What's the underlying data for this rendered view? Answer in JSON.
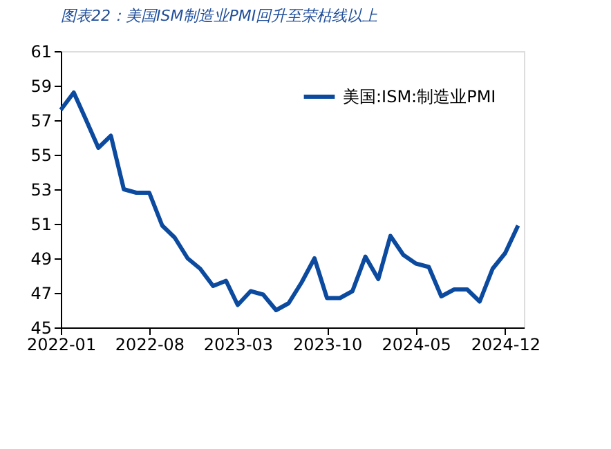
{
  "chart_data": {
    "type": "line",
    "title": "图表22：美国ISM制造业PMI回升至荣枯线以上",
    "x": [
      "2022-01",
      "2022-02",
      "2022-03",
      "2022-04",
      "2022-05",
      "2022-06",
      "2022-07",
      "2022-08",
      "2022-09",
      "2022-10",
      "2022-11",
      "2022-12",
      "2023-01",
      "2023-02",
      "2023-03",
      "2023-04",
      "2023-05",
      "2023-06",
      "2023-07",
      "2023-08",
      "2023-09",
      "2023-10",
      "2023-11",
      "2023-12",
      "2024-01",
      "2024-02",
      "2024-03",
      "2024-04",
      "2024-05",
      "2024-06",
      "2024-07",
      "2024-08",
      "2024-09",
      "2024-10",
      "2024-11",
      "2024-12",
      "2025-01"
    ],
    "series": [
      {
        "name": "美国:ISM:制造业PMI",
        "color": "#0b4a9e",
        "values": [
          57.6,
          58.6,
          57.1,
          55.4,
          56.1,
          53.0,
          52.8,
          52.8,
          50.9,
          50.2,
          49.0,
          48.4,
          47.4,
          47.7,
          46.3,
          47.1,
          46.9,
          46.0,
          46.4,
          47.6,
          49.0,
          46.7,
          46.7,
          47.1,
          49.1,
          47.8,
          50.3,
          49.2,
          48.7,
          48.5,
          46.8,
          47.2,
          47.2,
          46.5,
          48.4,
          49.3,
          50.9
        ]
      }
    ],
    "xlim": [
      "2022-01",
      "2025-01-15"
    ],
    "xticks": [
      "2022-01",
      "2022-08",
      "2023-03",
      "2023-10",
      "2024-05",
      "2024-12"
    ],
    "ylim": [
      45,
      61
    ],
    "yticks": [
      45,
      47,
      49,
      51,
      53,
      55,
      57,
      59,
      61
    ],
    "grid": false,
    "legend": "top right",
    "line_style": "solid",
    "marker": "none"
  }
}
